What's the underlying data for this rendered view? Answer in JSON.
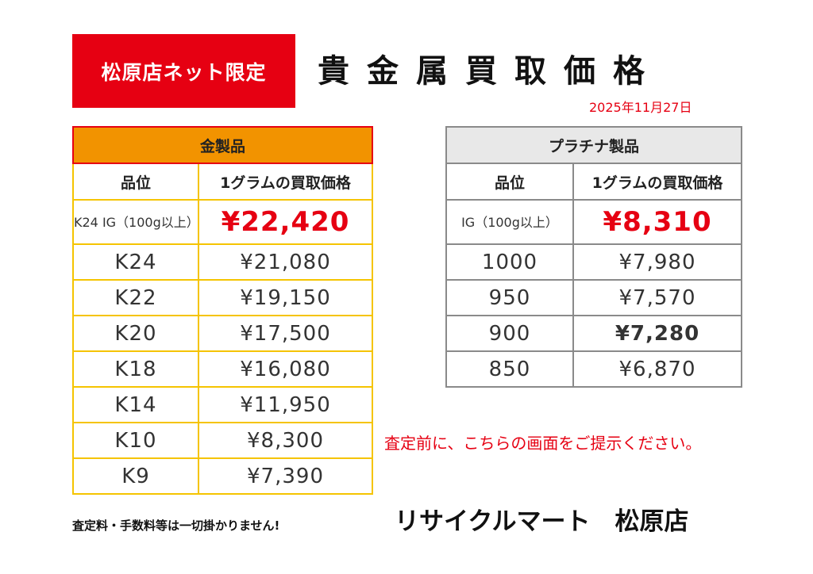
{
  "header": {
    "badge": "松原店ネット限定",
    "title": "貴金属買取価格",
    "date": "2025年11月27日"
  },
  "gold": {
    "title": "金製品",
    "col_grade": "品位",
    "col_price": "1グラムの買取価格",
    "first": {
      "grade": "K24 IG（100g以上）",
      "price": "¥22,420"
    },
    "rows": [
      {
        "grade": "K24",
        "price": "¥21,080"
      },
      {
        "grade": "K22",
        "price": "¥19,150"
      },
      {
        "grade": "K20",
        "price": "¥17,500"
      },
      {
        "grade": "K18",
        "price": "¥16,080"
      },
      {
        "grade": "K14",
        "price": "¥11,950"
      },
      {
        "grade": "K10",
        "price": "¥8,300"
      },
      {
        "grade": "K9",
        "price": "¥7,390"
      }
    ]
  },
  "platinum": {
    "title": "プラチナ製品",
    "col_grade": "品位",
    "col_price": "1グラムの買取価格",
    "first": {
      "grade": "IG（100g以上）",
      "price": "¥8,310"
    },
    "rows": [
      {
        "grade": "1000",
        "price": "¥7,980"
      },
      {
        "grade": "950",
        "price": "¥7,570"
      },
      {
        "grade": "900",
        "price": "¥7,280"
      },
      {
        "grade": "850",
        "price": "¥6,870"
      }
    ]
  },
  "notice": "査定前に、こちらの画面をご提示ください。",
  "footnote": "査定料・手数料等は一切掛かりません!",
  "store": "リサイクルマート　松原店",
  "colors": {
    "red": "#e60012",
    "gold_header": "#f29300",
    "gold_border": "#f5c400",
    "plat_header": "#e8e8e8",
    "plat_border": "#8a8a8a"
  }
}
